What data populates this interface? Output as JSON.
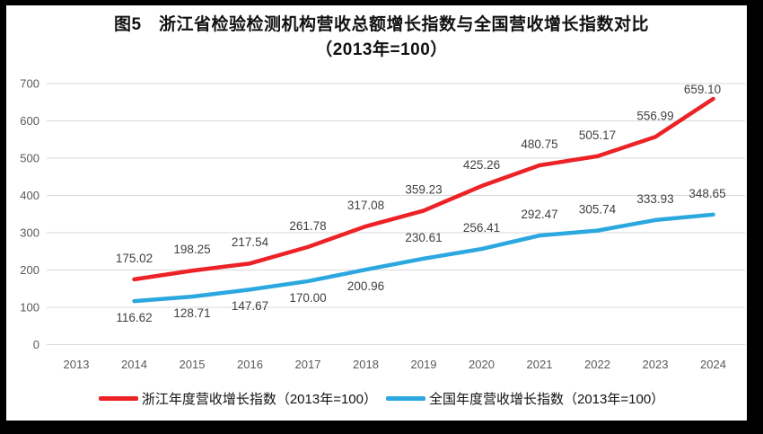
{
  "window": {
    "frame_color": "#000000",
    "panel_color": "#ffffff"
  },
  "chart": {
    "title_line1": "图5　浙江省检验检测机构营收总额增长指数与全国营收增长指数对比",
    "title_line2": "（2013年=100）"
  },
  "chart_data": {
    "type": "line",
    "title": "图5 浙江省检验检测机构营收总额增长指数与全国营收增长指数对比（2013年=100）",
    "xlabel": "",
    "ylabel": "",
    "categories": [
      "2013",
      "2014",
      "2015",
      "2016",
      "2017",
      "2018",
      "2019",
      "2020",
      "2021",
      "2022",
      "2023",
      "2024"
    ],
    "ylim": [
      0,
      700
    ],
    "ytick_step": 100,
    "yticks": [
      0,
      100,
      200,
      300,
      400,
      500,
      600,
      700
    ],
    "grid": true,
    "legend_position": "bottom",
    "gridline_color": "#D9D9D9",
    "axis_color": "#595959",
    "data_label_color": "#404040",
    "series": [
      {
        "name": "浙江年度营收增长指数（2013年=100）",
        "color": "#EC2227",
        "x": [
          "2014",
          "2015",
          "2016",
          "2017",
          "2018",
          "2019",
          "2020",
          "2021",
          "2022",
          "2023",
          "2024"
        ],
        "values": [
          175.02,
          198.25,
          217.54,
          261.78,
          317.08,
          359.23,
          425.26,
          480.75,
          505.17,
          556.99,
          659.1
        ],
        "labels": [
          "175.02",
          "198.25",
          "217.54",
          "261.78",
          "317.08",
          "359.23",
          "425.26",
          "480.75",
          "505.17",
          "556.99",
          "659.10"
        ],
        "label_positions": [
          "above",
          "above",
          "above",
          "above",
          "above",
          "above",
          "above",
          "above",
          "above",
          "above",
          "above"
        ]
      },
      {
        "name": "全国年度营收增长指数（2013年=100）",
        "color": "#2BA8E0",
        "x": [
          "2014",
          "2015",
          "2016",
          "2017",
          "2018",
          "2019",
          "2020",
          "2021",
          "2022",
          "2023",
          "2024"
        ],
        "values": [
          116.62,
          128.71,
          147.67,
          170.0,
          200.96,
          230.61,
          256.41,
          292.47,
          305.74,
          333.93,
          348.65
        ],
        "labels": [
          "116.62",
          "128.71",
          "147.67",
          "170.00",
          "200.96",
          "230.61",
          "256.41",
          "292.47",
          "305.74",
          "333.93",
          "348.65"
        ],
        "label_positions": [
          "below",
          "below",
          "below",
          "below",
          "below",
          "above",
          "above",
          "above",
          "above",
          "above",
          "above"
        ]
      }
    ]
  },
  "legend": {
    "items": [
      {
        "label": "浙江年度营收增长指数（2013年=100）",
        "color": "#EC2227"
      },
      {
        "label": "全国年度营收增长指数（2013年=100）",
        "color": "#2BA8E0"
      }
    ]
  }
}
